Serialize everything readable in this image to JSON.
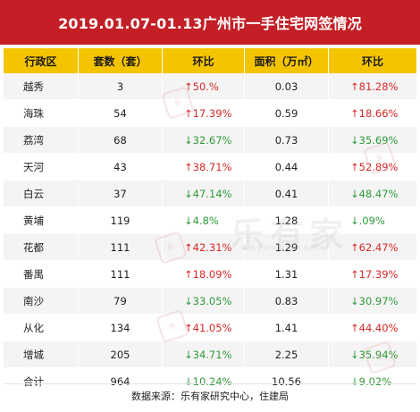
{
  "title": "2019.01.07-01.13广州市一手住宅网签情况",
  "colors": {
    "title_bg": "#c41f26",
    "header_bg": "#f5c400",
    "up": "#d62828",
    "down": "#2e9a3a"
  },
  "columns": [
    "行政区",
    "套数（套）",
    "环比",
    "面积（万㎡）",
    "环比"
  ],
  "rows": [
    {
      "district": "越秀",
      "units": "3",
      "units_change": "↑50.%",
      "units_dir": "up",
      "area": "0.03",
      "area_change": "↑81.28%",
      "area_dir": "up"
    },
    {
      "district": "海珠",
      "units": "54",
      "units_change": "↑17.39%",
      "units_dir": "up",
      "area": "0.59",
      "area_change": "↑18.66%",
      "area_dir": "up"
    },
    {
      "district": "荔湾",
      "units": "68",
      "units_change": "↓32.67%",
      "units_dir": "down",
      "area": "0.73",
      "area_change": "↓35.69%",
      "area_dir": "down"
    },
    {
      "district": "天河",
      "units": "43",
      "units_change": "↑38.71%",
      "units_dir": "up",
      "area": "0.44",
      "area_change": "↑52.89%",
      "area_dir": "up"
    },
    {
      "district": "白云",
      "units": "37",
      "units_change": "↓47.14%",
      "units_dir": "down",
      "area": "0.41",
      "area_change": "↓48.47%",
      "area_dir": "down"
    },
    {
      "district": "黄埔",
      "units": "119",
      "units_change": "↓4.8%",
      "units_dir": "down",
      "area": "1.28",
      "area_change": "↓.09%",
      "area_dir": "down"
    },
    {
      "district": "花都",
      "units": "111",
      "units_change": "↑42.31%",
      "units_dir": "up",
      "area": "1.29",
      "area_change": "↑62.47%",
      "area_dir": "up"
    },
    {
      "district": "番禺",
      "units": "111",
      "units_change": "↑18.09%",
      "units_dir": "up",
      "area": "1.31",
      "area_change": "↑17.39%",
      "area_dir": "up"
    },
    {
      "district": "南沙",
      "units": "79",
      "units_change": "↓33.05%",
      "units_dir": "down",
      "area": "0.83",
      "area_change": "↓30.97%",
      "area_dir": "down"
    },
    {
      "district": "从化",
      "units": "134",
      "units_change": "↑41.05%",
      "units_dir": "up",
      "area": "1.41",
      "area_change": "↑44.40%",
      "area_dir": "up"
    },
    {
      "district": "增城",
      "units": "205",
      "units_change": "↓34.71%",
      "units_dir": "down",
      "area": "2.25",
      "area_change": "↓35.94%",
      "area_dir": "down"
    },
    {
      "district": "合计",
      "units": "964",
      "units_change": "↓10.24%",
      "units_dir": "down",
      "area": "10.56",
      "area_change": "↓9.02%",
      "area_dir": "down"
    }
  ],
  "source": "数据来源：乐有家研究中心，住建局",
  "watermark": {
    "brand": "乐有家",
    "url": "Leyoujia.com"
  }
}
